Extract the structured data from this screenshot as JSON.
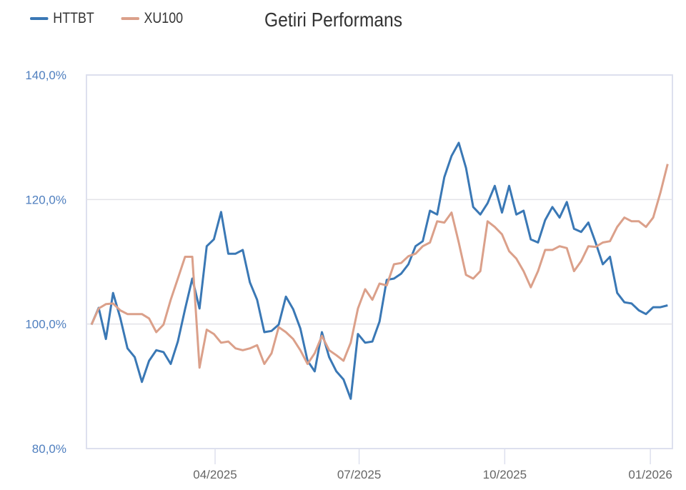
{
  "chart_data": {
    "type": "line",
    "title": "Getiri Performans",
    "xlabel": "",
    "ylabel": "",
    "legend_position": "top-left",
    "grid": true,
    "ylim": [
      80,
      140
    ],
    "y_ticks": [
      {
        "value": 140,
        "label": "140,0%"
      },
      {
        "value": 120,
        "label": "120,0%"
      },
      {
        "value": 100,
        "label": "100,0%"
      },
      {
        "value": 80,
        "label": "80,0%"
      }
    ],
    "x_ticks": [
      {
        "day": 90,
        "label": "04/2025"
      },
      {
        "day": 181,
        "label": "07/2025"
      },
      {
        "day": 273,
        "label": "10/2025"
      },
      {
        "day": 365,
        "label": "01/2026"
      }
    ],
    "x_unit": "days since 2025-01-01",
    "x_start_day": 11.9,
    "x_step_days": 4.55,
    "series": [
      {
        "name": "HTTBT",
        "color": "#3a78b5",
        "values": [
          99.9,
          102.6,
          97.6,
          105.0,
          101.0,
          96.1,
          94.7,
          90.7,
          94.1,
          95.8,
          95.5,
          93.6,
          97.2,
          102.4,
          107.3,
          102.5,
          112.5,
          113.6,
          118.0,
          111.3,
          111.3,
          111.9,
          106.7,
          103.9,
          98.7,
          98.9,
          99.9,
          104.4,
          102.4,
          99.3,
          94.1,
          92.4,
          98.7,
          94.7,
          92.4,
          91.1,
          88.0,
          98.4,
          97.0,
          97.2,
          100.4,
          107.1,
          107.3,
          108.1,
          109.6,
          112.5,
          113.3,
          118.2,
          117.6,
          123.6,
          127.0,
          129.1,
          125.1,
          118.8,
          117.6,
          119.4,
          122.2,
          117.9,
          122.2,
          117.6,
          118.2,
          113.6,
          113.1,
          116.7,
          118.8,
          117.1,
          119.6,
          115.3,
          114.8,
          116.3,
          113.1,
          109.6,
          110.8,
          105.0,
          103.5,
          103.3,
          102.2,
          101.6,
          102.7,
          102.7,
          103.0
        ]
      },
      {
        "name": "XU100",
        "color": "#dba08a",
        "values": [
          99.9,
          102.5,
          103.2,
          103.3,
          102.2,
          101.6,
          101.6,
          101.6,
          100.9,
          98.7,
          99.9,
          103.9,
          107.3,
          110.8,
          110.8,
          93.0,
          99.1,
          98.4,
          97.0,
          97.2,
          96.1,
          95.8,
          96.1,
          96.6,
          93.6,
          95.3,
          99.5,
          98.7,
          97.6,
          95.8,
          93.6,
          95.3,
          98.1,
          95.8,
          95.0,
          94.1,
          97.0,
          102.5,
          105.6,
          103.9,
          106.5,
          106.2,
          109.6,
          109.8,
          110.9,
          111.3,
          112.5,
          113.1,
          116.5,
          116.3,
          117.9,
          113.1,
          107.9,
          107.3,
          108.5,
          116.5,
          115.6,
          114.4,
          111.7,
          110.5,
          108.5,
          105.9,
          108.5,
          111.9,
          111.9,
          112.5,
          112.2,
          108.5,
          110.1,
          112.5,
          112.4,
          113.1,
          113.3,
          115.6,
          117.1,
          116.5,
          116.5,
          115.6,
          117.1,
          121.1,
          125.7
        ]
      }
    ]
  }
}
